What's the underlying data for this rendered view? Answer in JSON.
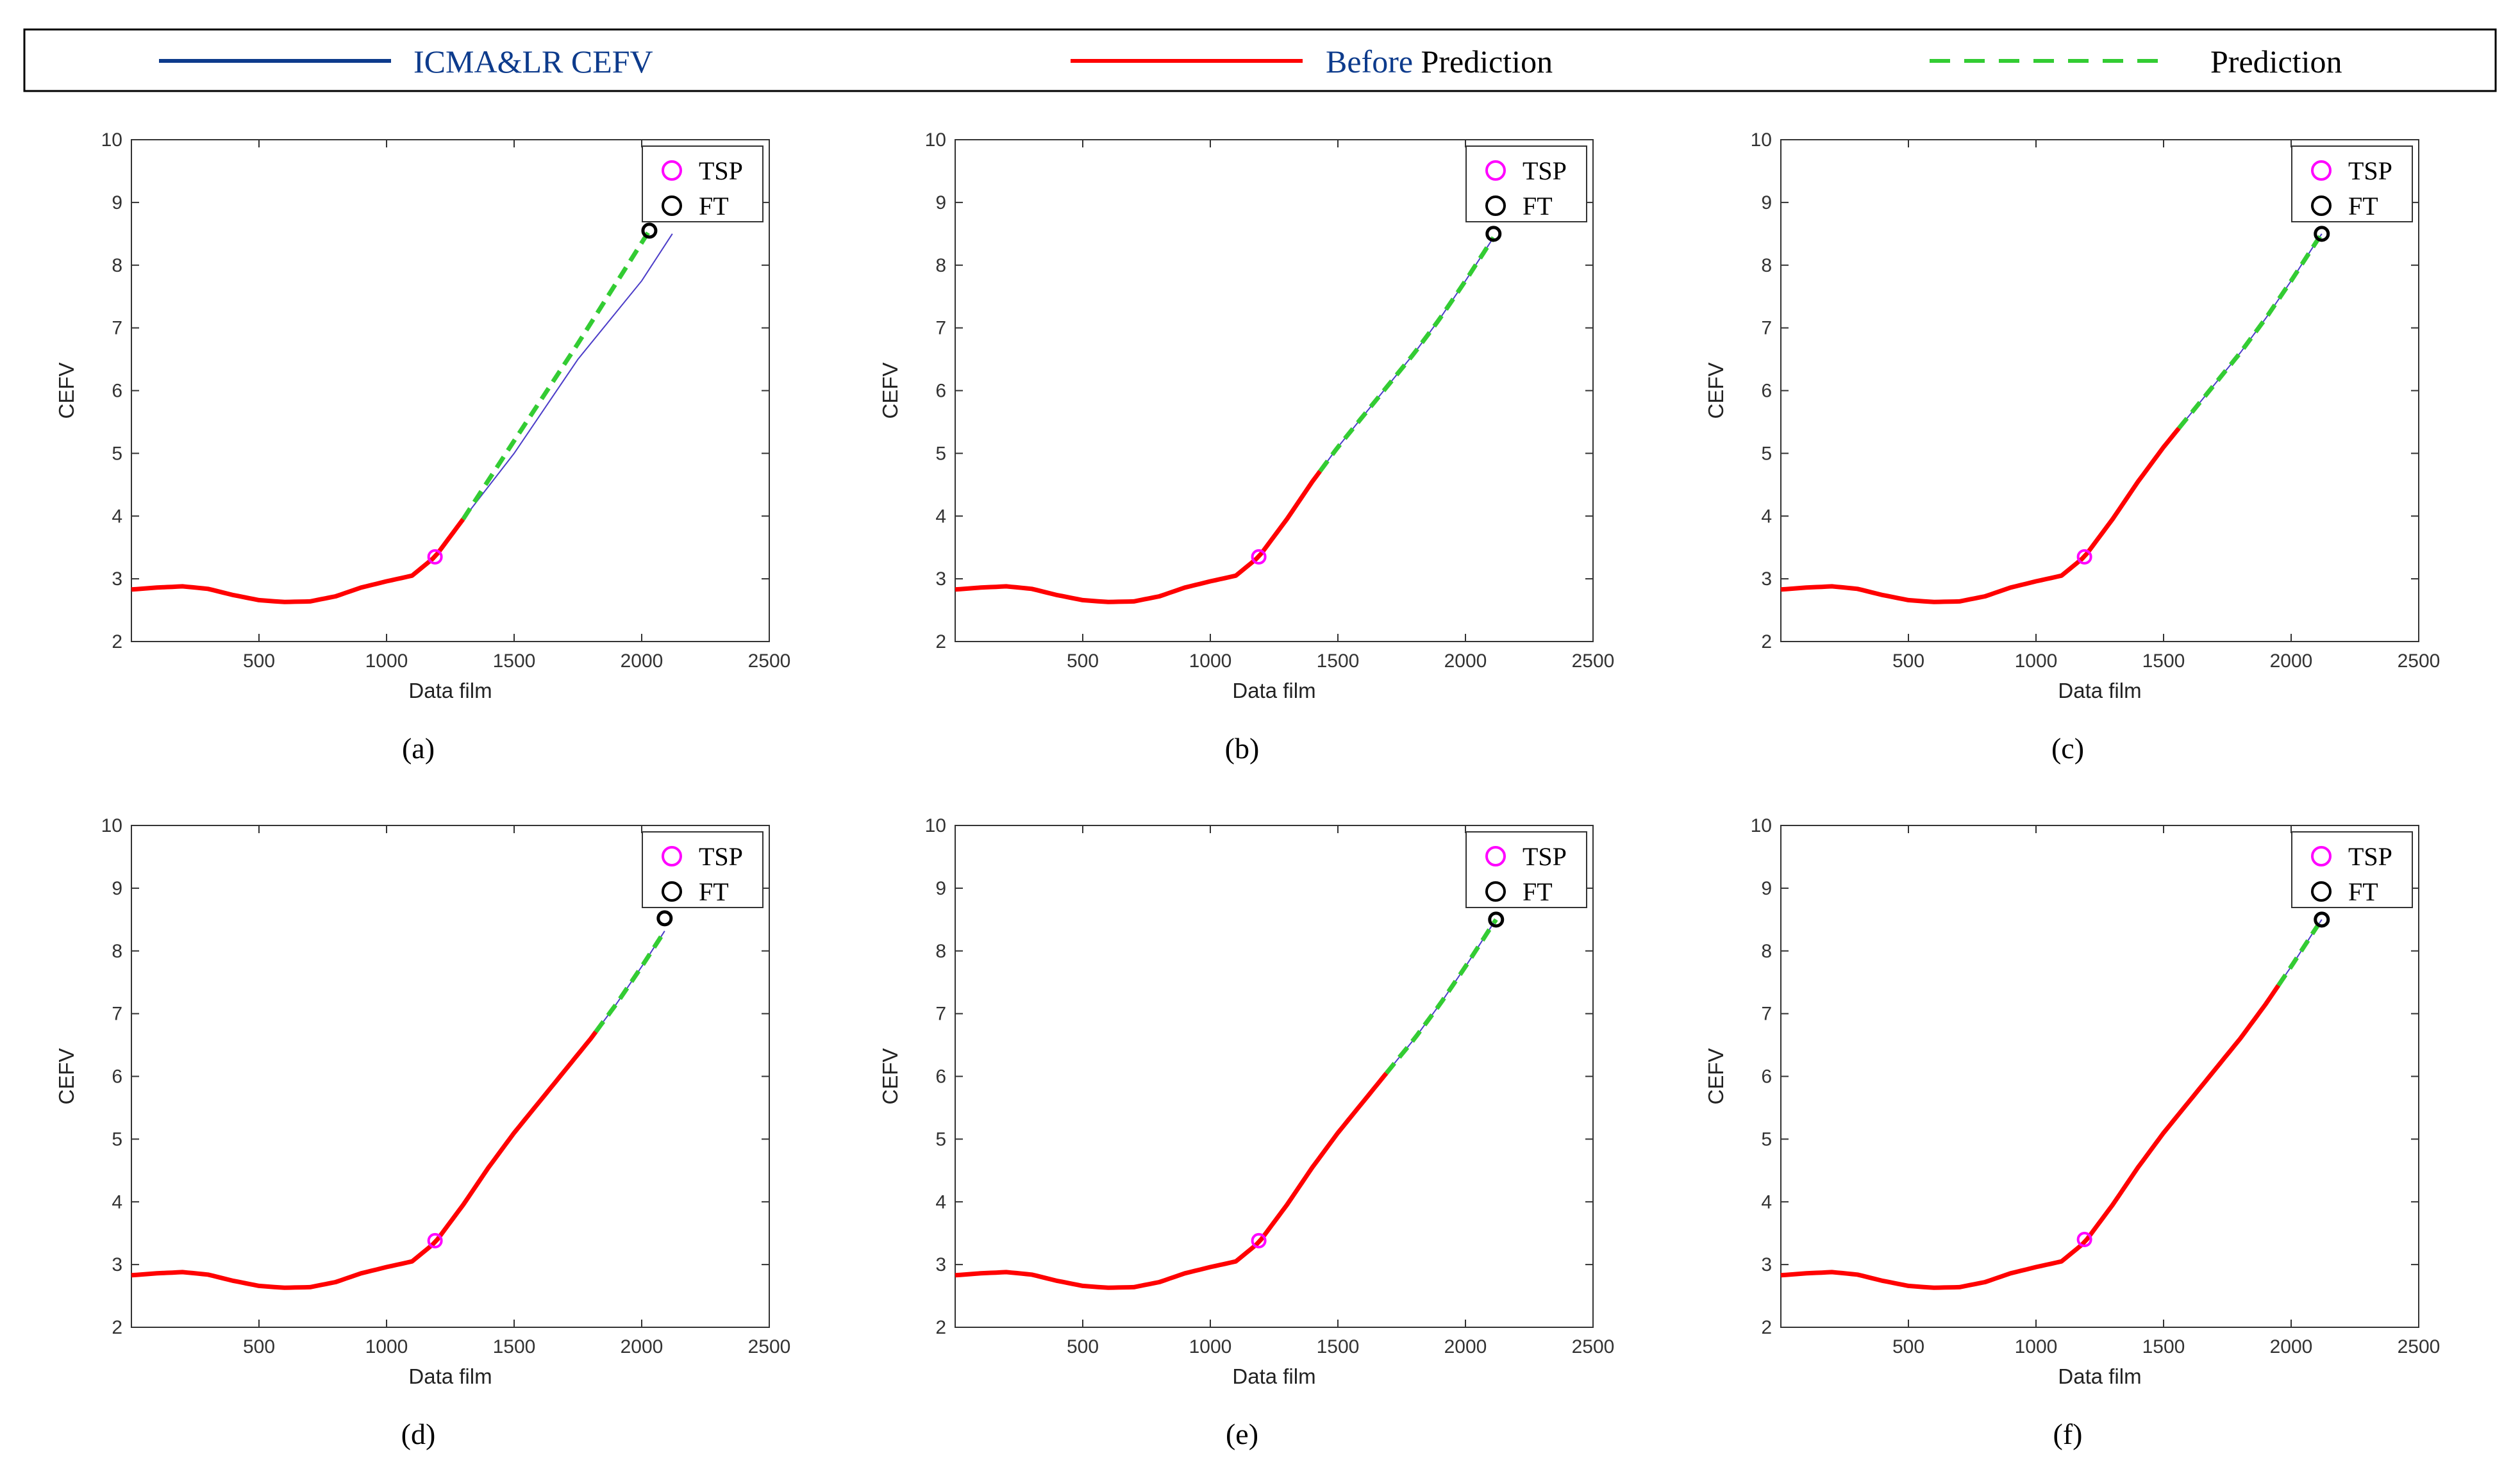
{
  "legend": {
    "items": [
      {
        "label": "ICMA&LR CEFV",
        "color": "#0d3b8c",
        "style": "solid"
      },
      {
        "label_prefix": "Before",
        "label_suffix": " Prediction",
        "color": "#ff0000",
        "style": "solid"
      },
      {
        "label": "Prediction",
        "color": "#33cc33",
        "style": "dashed"
      }
    ]
  },
  "colors": {
    "icma": "#4b3cc8",
    "before": "#ff0000",
    "prediction": "#33cc33",
    "tsp": "#ff00ff",
    "ft": "#000000"
  },
  "chart_data": [
    {
      "panel": "(a)",
      "type": "line",
      "xlabel": "Data film",
      "ylabel": "CEFV",
      "xlim": [
        0,
        2500
      ],
      "ylim": [
        2,
        10
      ],
      "xticks": [
        500,
        1000,
        1500,
        2000,
        2500
      ],
      "yticks": [
        2,
        3,
        4,
        5,
        6,
        7,
        8,
        9,
        10
      ],
      "inner_legend": [
        "TSP",
        "FT"
      ],
      "inner_legend_position": "top-right",
      "tsp": [
        1190,
        3.35
      ],
      "ft": [
        2030,
        8.55
      ],
      "prediction_start": 1300,
      "icma_end": [
        2120,
        8.5
      ],
      "prediction_path": [
        [
          1300,
          3.95
        ],
        [
          1500,
          5.2
        ],
        [
          1750,
          6.75
        ],
        [
          2030,
          8.55
        ]
      ]
    },
    {
      "panel": "(b)",
      "type": "line",
      "xlabel": "Data film",
      "ylabel": "CEFV",
      "xlim": [
        0,
        2500
      ],
      "ylim": [
        2,
        10
      ],
      "xticks": [
        500,
        1000,
        1500,
        2000,
        2500
      ],
      "yticks": [
        2,
        3,
        4,
        5,
        6,
        7,
        8,
        9,
        10
      ],
      "inner_legend": [
        "TSP",
        "FT"
      ],
      "inner_legend_position": "top-right",
      "tsp": [
        1190,
        3.35
      ],
      "ft": [
        2110,
        8.5
      ],
      "prediction_start": 1430,
      "icma_end": [
        2110,
        8.5
      ]
    },
    {
      "panel": "(c)",
      "type": "line",
      "xlabel": "Data film",
      "ylabel": "CEFV",
      "xlim": [
        0,
        2500
      ],
      "ylim": [
        2,
        10
      ],
      "xticks": [
        500,
        1000,
        1500,
        2000,
        2500
      ],
      "yticks": [
        2,
        3,
        4,
        5,
        6,
        7,
        8,
        9,
        10
      ],
      "inner_legend": [
        "TSP",
        "FT"
      ],
      "inner_legend_position": "top-right",
      "tsp": [
        1190,
        3.35
      ],
      "ft": [
        2120,
        8.5
      ],
      "prediction_start": 1560,
      "icma_end": [
        2120,
        8.5
      ]
    },
    {
      "panel": "(d)",
      "type": "line",
      "xlabel": "Data film",
      "ylabel": "CEFV",
      "xlim": [
        0,
        2500
      ],
      "ylim": [
        2,
        10
      ],
      "xticks": [
        500,
        1000,
        1500,
        2000,
        2500
      ],
      "yticks": [
        2,
        3,
        4,
        5,
        6,
        7,
        8,
        9,
        10
      ],
      "inner_legend": [
        "TSP",
        "FT"
      ],
      "inner_legend_position": "top-right",
      "tsp": [
        1190,
        3.38
      ],
      "ft": [
        2090,
        8.52
      ],
      "prediction_start": 1820,
      "icma_end": [
        2090,
        8.52
      ]
    },
    {
      "panel": "(e)",
      "type": "line",
      "xlabel": "Data film",
      "ylabel": "CEFV",
      "xlim": [
        0,
        2500
      ],
      "ylim": [
        2,
        10
      ],
      "xticks": [
        500,
        1000,
        1500,
        2000,
        2500
      ],
      "yticks": [
        2,
        3,
        4,
        5,
        6,
        7,
        8,
        9,
        10
      ],
      "inner_legend": [
        "TSP",
        "FT"
      ],
      "inner_legend_position": "top-right",
      "tsp": [
        1190,
        3.38
      ],
      "ft": [
        2120,
        8.5
      ],
      "prediction_start": 1690,
      "icma_end": [
        2120,
        8.5
      ]
    },
    {
      "panel": "(f)",
      "type": "line",
      "xlabel": "Data film",
      "ylabel": "CEFV",
      "xlim": [
        0,
        2500
      ],
      "ylim": [
        2,
        10
      ],
      "xticks": [
        500,
        1000,
        1500,
        2000,
        2500
      ],
      "yticks": [
        2,
        3,
        4,
        5,
        6,
        7,
        8,
        9,
        10
      ],
      "inner_legend": [
        "TSP",
        "FT"
      ],
      "inner_legend_position": "top-right",
      "tsp": [
        1190,
        3.4
      ],
      "ft": [
        2120,
        8.5
      ],
      "prediction_start": 1950,
      "icma_end": [
        2120,
        8.5
      ]
    }
  ],
  "base_curve": [
    [
      0,
      2.83
    ],
    [
      100,
      2.86
    ],
    [
      200,
      2.88
    ],
    [
      300,
      2.84
    ],
    [
      400,
      2.74
    ],
    [
      500,
      2.66
    ],
    [
      600,
      2.63
    ],
    [
      700,
      2.64
    ],
    [
      800,
      2.72
    ],
    [
      900,
      2.86
    ],
    [
      1000,
      2.96
    ],
    [
      1100,
      3.05
    ],
    [
      1190,
      3.35
    ],
    [
      1300,
      3.95
    ],
    [
      1400,
      4.55
    ],
    [
      1500,
      5.1
    ],
    [
      1600,
      5.6
    ],
    [
      1700,
      6.1
    ],
    [
      1800,
      6.6
    ],
    [
      1900,
      7.15
    ],
    [
      2000,
      7.75
    ],
    [
      2100,
      8.38
    ],
    [
      2120,
      8.5
    ]
  ]
}
